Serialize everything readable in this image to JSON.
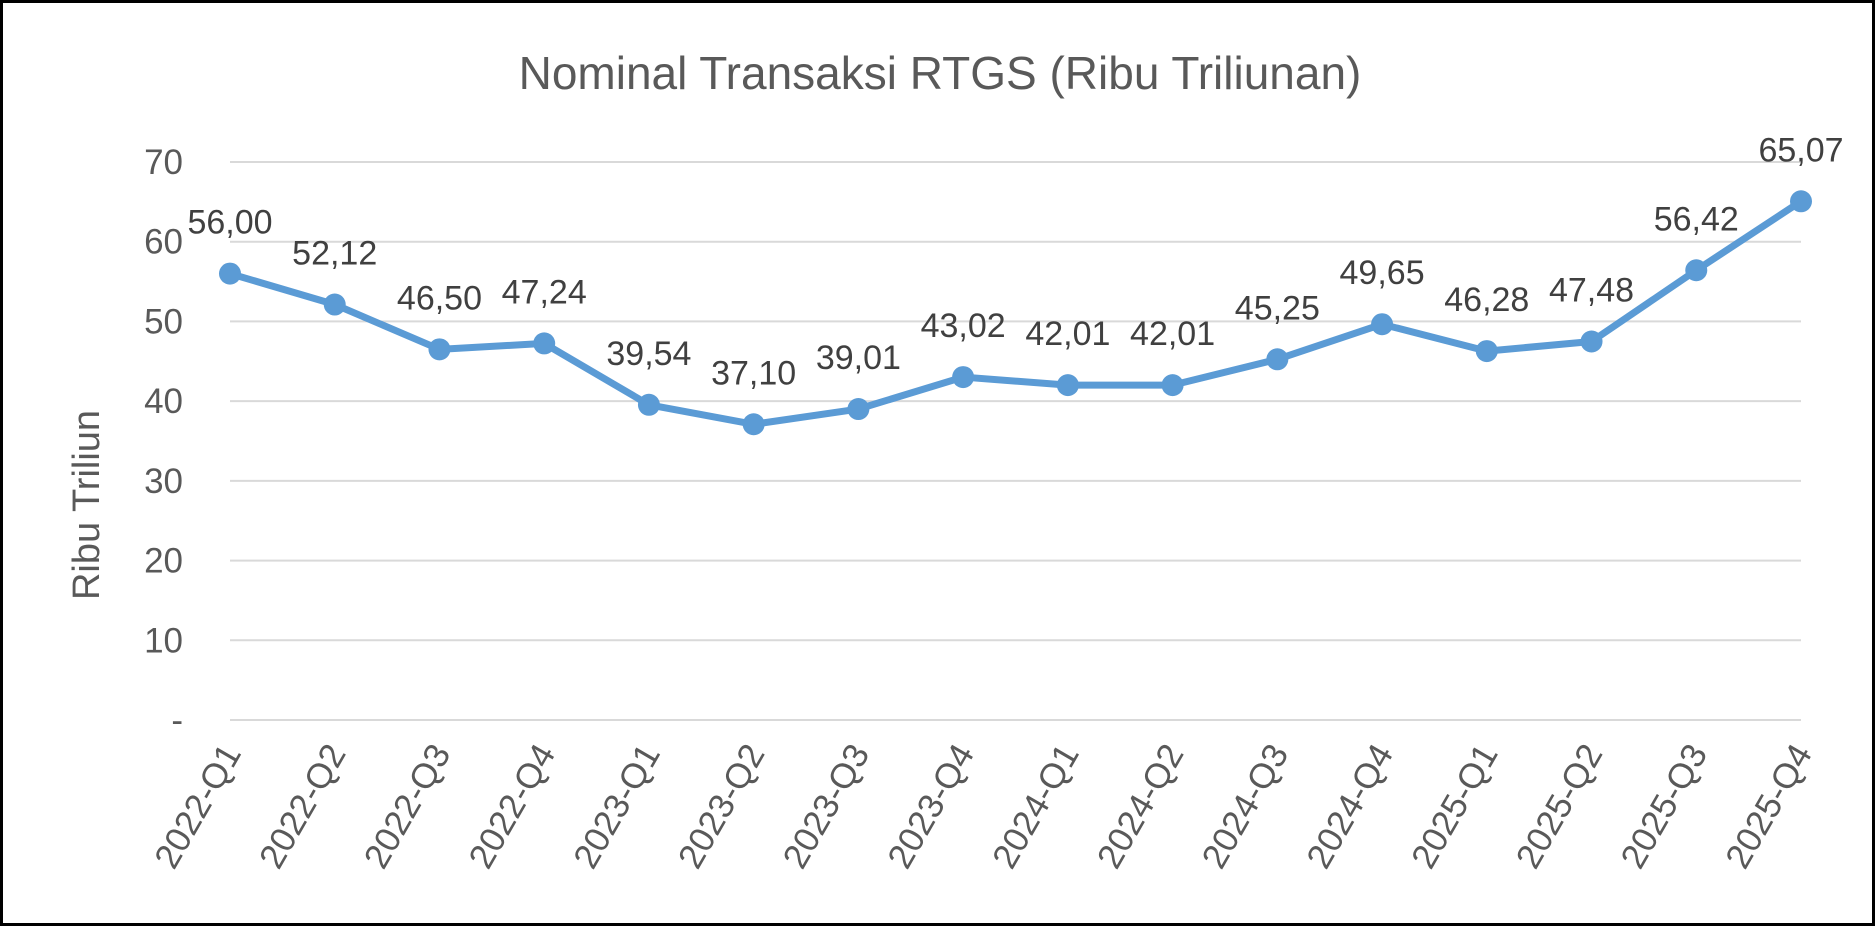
{
  "chart_data": {
    "type": "line",
    "title": "Nominal Transaksi RTGS (Ribu Triliunan)",
    "xlabel": "",
    "ylabel": "Ribu Triliun",
    "categories": [
      "2022-Q1",
      "2022-Q2",
      "2022-Q3",
      "2022-Q4",
      "2023-Q1",
      "2023-Q2",
      "2023-Q3",
      "2023-Q4",
      "2024-Q1",
      "2024-Q2",
      "2024-Q3",
      "2024-Q4",
      "2025-Q1",
      "2025-Q2",
      "2025-Q3",
      "2025-Q4"
    ],
    "values": [
      56.0,
      52.12,
      46.5,
      47.24,
      39.54,
      37.1,
      39.01,
      43.02,
      42.01,
      42.01,
      45.25,
      49.65,
      46.28,
      47.48,
      56.42,
      65.07
    ],
    "data_labels": [
      "56,00",
      "52,12",
      "46,50",
      "47,24",
      "39,54",
      "37,10",
      "39,01",
      "43,02",
      "42,01",
      "42,01",
      "45,25",
      "49,65",
      "46,28",
      "47,48",
      "56,42",
      "65,07"
    ],
    "ylim": [
      0,
      70
    ],
    "yticks": [
      0,
      10,
      20,
      30,
      40,
      50,
      60,
      70
    ],
    "ytick_labels": [
      "-",
      "10",
      "20",
      "30",
      "40",
      "50",
      "60",
      "70"
    ],
    "grid": true,
    "legend": "none",
    "colors": {
      "line": "#5B9BD5",
      "grid": "#D9D9D9",
      "text": "#595959",
      "data_label": "#404040",
      "border": "#000000"
    }
  }
}
